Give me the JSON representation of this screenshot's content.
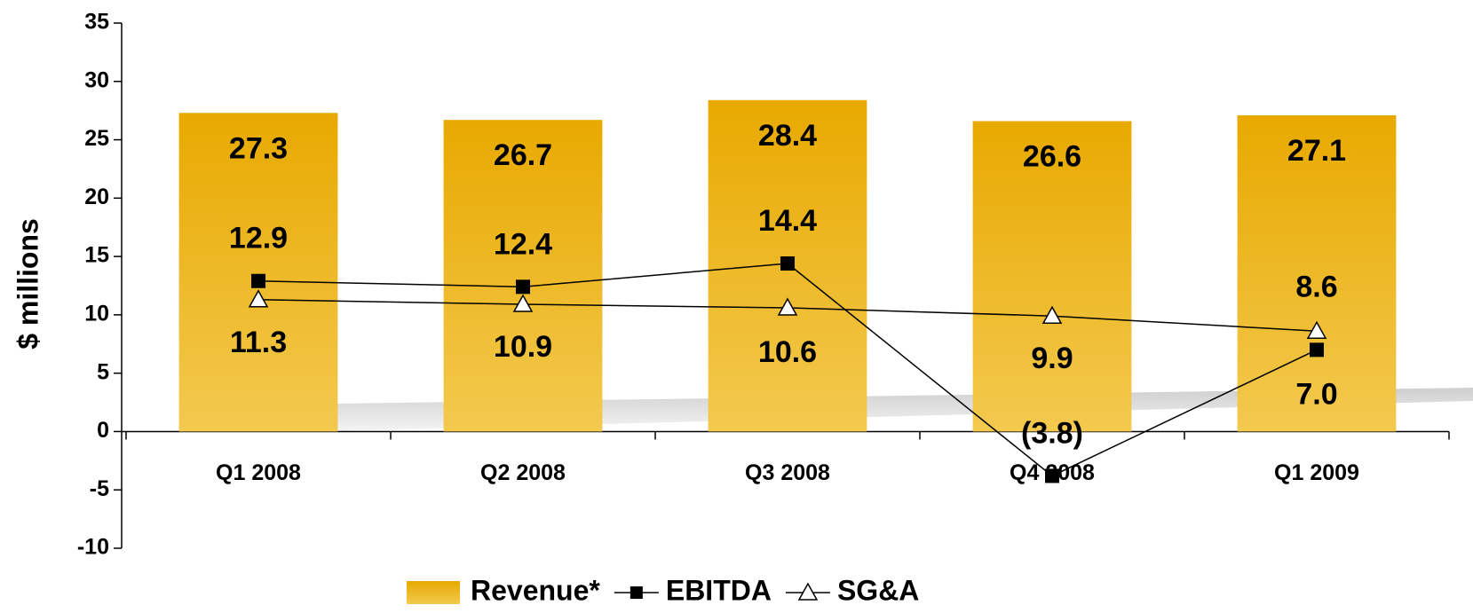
{
  "chart_data": {
    "type": "bar_line",
    "y_label": "$ millions",
    "categories": [
      "Q1 2008",
      "Q2 2008",
      "Q3 2008",
      "Q4 2008",
      "Q1 2009"
    ],
    "ylim": [
      -10,
      35
    ],
    "yticks": [
      -10,
      -5,
      0,
      5,
      10,
      15,
      20,
      25,
      30,
      35
    ],
    "series": [
      {
        "name": "Revenue*",
        "type": "bar",
        "color": "#e9ad0c",
        "values": [
          27.3,
          26.7,
          28.4,
          26.6,
          27.1
        ],
        "value_labels": [
          "27.3",
          "26.7",
          "28.4",
          "26.6",
          "27.1"
        ]
      },
      {
        "name": "EBITDA",
        "type": "line",
        "marker": "square",
        "color": "#000000",
        "values": [
          12.9,
          12.4,
          14.4,
          -3.8,
          7.0
        ],
        "value_labels": [
          "12.9",
          "12.4",
          "14.4",
          "(3.8)",
          "7.0"
        ]
      },
      {
        "name": "SG&A",
        "type": "line",
        "marker": "triangle",
        "color": "#000000",
        "values": [
          11.3,
          10.9,
          10.6,
          9.9,
          8.6
        ],
        "value_labels": [
          "11.3",
          "10.9",
          "10.6",
          "9.9",
          "8.6"
        ]
      }
    ]
  }
}
